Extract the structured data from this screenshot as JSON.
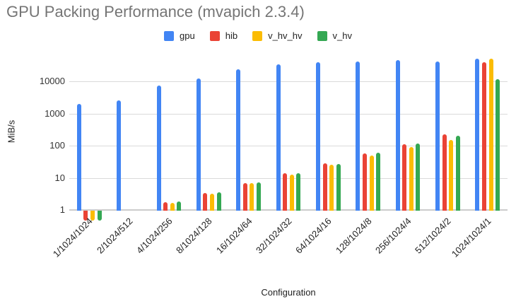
{
  "chart_data": {
    "type": "bar",
    "title": "GPU Packing Performance (mvapich 2.3.4)",
    "xlabel": "Configuration",
    "ylabel": "MiB/s",
    "y_scale": "log",
    "y_ticks": [
      1,
      10,
      100,
      1000,
      10000
    ],
    "ylim": [
      1,
      92000
    ],
    "grid": true,
    "legend_position": "top",
    "categories": [
      "1/1024/1024",
      "2/1024/512",
      "4/1024/256",
      "8/1024/128",
      "16/1024/64",
      "32/1024/32",
      "64/1024/16",
      "128/1024/8",
      "256/1024/4",
      "512/1024/2",
      "1024/1024/1"
    ],
    "series": [
      {
        "name": "gpu",
        "color": "#4285F4",
        "values": [
          2150,
          2700,
          8000,
          13000,
          25000,
          36000,
          43000,
          45500,
          50000,
          44500,
          55000
        ]
      },
      {
        "name": "hib",
        "color": "#EA4335",
        "values": [
          0.5,
          null,
          1.8,
          3.6,
          7.4,
          14.5,
          29.5,
          60,
          118,
          240,
          43000
        ]
      },
      {
        "name": "v_hv_hv",
        "color": "#FBBC04",
        "values": [
          0.5,
          null,
          1.75,
          3.45,
          7.3,
          13.5,
          27.5,
          52,
          95,
          162,
          53500
        ]
      },
      {
        "name": "v_hv",
        "color": "#34A853",
        "values": [
          0.5,
          null,
          1.9,
          3.75,
          7.6,
          15,
          29,
          65,
          123,
          220,
          12800
        ]
      }
    ]
  },
  "colors": {
    "title_text": "#757575",
    "legend_text": "#222222",
    "tick_text": "#333333",
    "axis_title_text": "#222222",
    "gridline": "#dadada",
    "baseline": "#cccccc",
    "background": "#ffffff"
  }
}
